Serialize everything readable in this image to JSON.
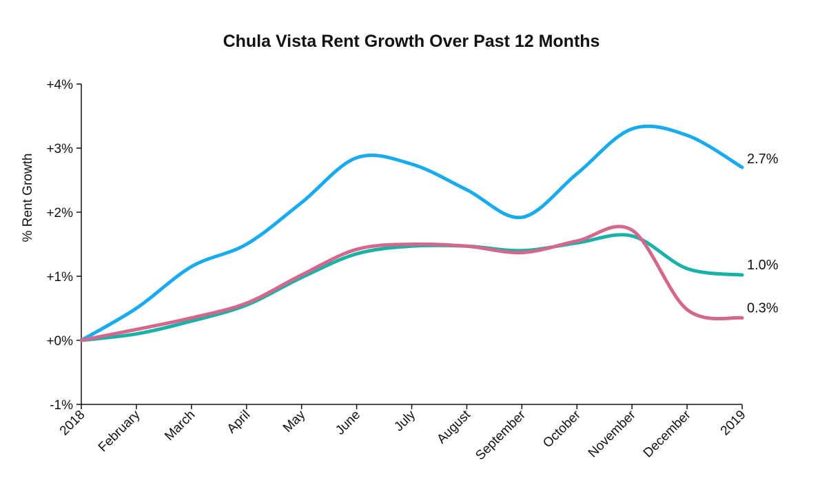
{
  "chart_data": {
    "type": "line",
    "title": "Chula Vista Rent Growth Over Past 12 Months",
    "ylabel": "% Rent Growth",
    "xlabel": "",
    "categories": [
      "2018",
      "February",
      "March",
      "April",
      "May",
      "June",
      "July",
      "August",
      "September",
      "October",
      "November",
      "December",
      "2019"
    ],
    "y_ticks": [
      {
        "value": 4,
        "label": "+4%"
      },
      {
        "value": 3,
        "label": "+3%"
      },
      {
        "value": 2,
        "label": "+2%"
      },
      {
        "value": 1,
        "label": "+1%"
      },
      {
        "value": 0,
        "label": "+0%"
      },
      {
        "value": -1,
        "label": "-1%"
      }
    ],
    "ylim": [
      -1,
      4
    ],
    "grid": false,
    "series": [
      {
        "color": "#1aabee",
        "values": [
          0.0,
          0.5,
          1.15,
          1.5,
          2.15,
          2.85,
          2.75,
          2.35,
          1.92,
          2.6,
          3.3,
          3.2,
          2.7
        ],
        "end_label": "2.7%"
      },
      {
        "color": "#1ab2a8",
        "values": [
          0.0,
          0.1,
          0.3,
          0.55,
          0.98,
          1.35,
          1.47,
          1.47,
          1.4,
          1.52,
          1.63,
          1.12,
          1.02
        ],
        "end_label": "1.0%"
      },
      {
        "color": "#d4688c",
        "values": [
          0.0,
          0.17,
          0.35,
          0.58,
          1.02,
          1.42,
          1.5,
          1.47,
          1.37,
          1.55,
          1.72,
          0.48,
          0.35
        ],
        "end_label": "0.3%"
      }
    ]
  }
}
